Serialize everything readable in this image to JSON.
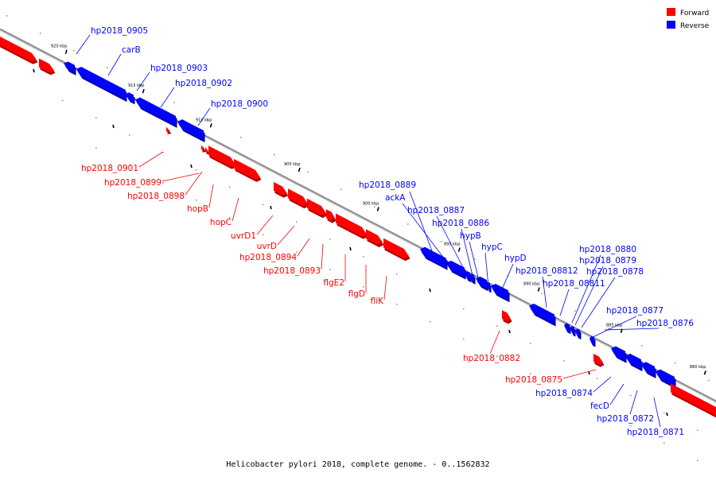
{
  "caption": "Helicobacter pylori 2018, complete genome. - 0..1562832",
  "legend": [
    {
      "label": "Forward",
      "color": "#ff0000"
    },
    {
      "label": "Reverse",
      "color": "#0000ff"
    }
  ],
  "colors": {
    "forward": "#ff0000",
    "reverse": "#0000ff",
    "axis": "#808080"
  },
  "tick_labels": [
    "920 kbp",
    "915 kbp",
    "910 kbp",
    "905 kbp",
    "900 kbp",
    "895 kbp",
    "890 kbp",
    "885 kbp",
    "880 kbp"
  ],
  "features": [
    {
      "label": "hp2018_0905",
      "strand": "reverse"
    },
    {
      "label": "carB",
      "strand": "reverse"
    },
    {
      "label": "hp2018_0903",
      "strand": "reverse"
    },
    {
      "label": "hp2018_0902",
      "strand": "reverse"
    },
    {
      "label": "hp2018_0900",
      "strand": "reverse"
    },
    {
      "label": "hp2018_0901",
      "strand": "forward"
    },
    {
      "label": "hp2018_0899",
      "strand": "forward"
    },
    {
      "label": "hp2018_0898",
      "strand": "forward"
    },
    {
      "label": "hopB",
      "strand": "forward"
    },
    {
      "label": "hopC",
      "strand": "forward"
    },
    {
      "label": "uvrD1",
      "strand": "forward"
    },
    {
      "label": "uvrD",
      "strand": "forward"
    },
    {
      "label": "hp2018_0894",
      "strand": "forward"
    },
    {
      "label": "hp2018_0893",
      "strand": "forward"
    },
    {
      "label": "flgE2",
      "strand": "forward"
    },
    {
      "label": "flgD",
      "strand": "forward"
    },
    {
      "label": "fliK",
      "strand": "forward"
    },
    {
      "label": "hp2018_0889",
      "strand": "reverse"
    },
    {
      "label": "ackA",
      "strand": "reverse"
    },
    {
      "label": "hp2018_0887",
      "strand": "reverse"
    },
    {
      "label": "hp2018_0886",
      "strand": "reverse"
    },
    {
      "label": "hypB",
      "strand": "reverse"
    },
    {
      "label": "hypC",
      "strand": "reverse"
    },
    {
      "label": "hypD",
      "strand": "reverse"
    },
    {
      "label": "hp2018_08812",
      "strand": "reverse"
    },
    {
      "label": "hp2018_08811",
      "strand": "reverse"
    },
    {
      "label": "hp2018_0880",
      "strand": "reverse"
    },
    {
      "label": "hp2018_0879",
      "strand": "reverse"
    },
    {
      "label": "hp2018_0878",
      "strand": "reverse"
    },
    {
      "label": "hp2018_0877",
      "strand": "reverse"
    },
    {
      "label": "hp2018_0876",
      "strand": "reverse"
    },
    {
      "label": "hp2018_0882",
      "strand": "forward"
    },
    {
      "label": "hp2018_0875",
      "strand": "forward"
    },
    {
      "label": "hp2018_0874",
      "strand": "reverse"
    },
    {
      "label": "fecD",
      "strand": "reverse"
    },
    {
      "label": "hp2018_0872",
      "strand": "reverse"
    },
    {
      "label": "hp2018_0871",
      "strand": "reverse"
    }
  ]
}
